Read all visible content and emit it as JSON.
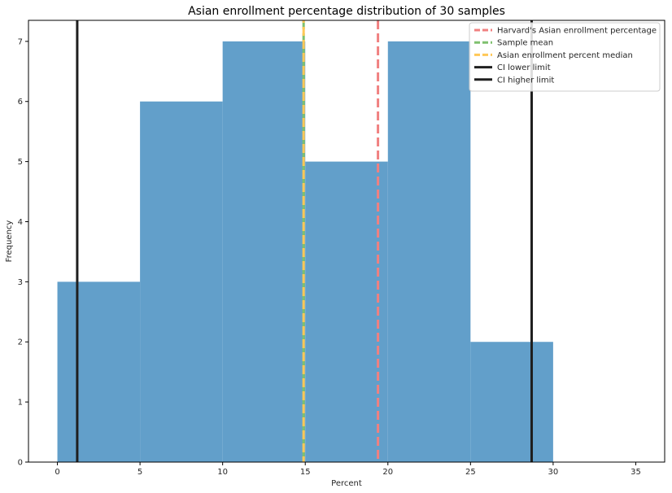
{
  "chart_data": {
    "type": "bar",
    "title": "Asian enrollment percentage distribution of 30 samples",
    "xlabel": "Percent",
    "ylabel": "Frequency",
    "xlim": [
      -1.75,
      36.75
    ],
    "ylim": [
      0,
      7.35
    ],
    "xticks": [
      0,
      5,
      10,
      15,
      20,
      25,
      30,
      35
    ],
    "yticks": [
      0,
      1,
      2,
      3,
      4,
      5,
      6,
      7
    ],
    "bin_edges": [
      0,
      5,
      10,
      15,
      20,
      25,
      30
    ],
    "values": [
      3,
      6,
      7,
      5,
      7,
      2
    ],
    "bar_color": "#629fca",
    "grid": false,
    "legend_position": "upper right",
    "reference_lines": [
      {
        "name": "Harvard's Asian enrollment percentage",
        "x": 19.4,
        "color": "#f08080",
        "style": "dashed"
      },
      {
        "name": "Sample mean",
        "x": 14.9,
        "color": "#7fc06f",
        "style": "dashed"
      },
      {
        "name": "Asian enrollment percent median",
        "x": 14.9,
        "color": "#ffc857",
        "style": "dashed"
      },
      {
        "name": "CI lower limit",
        "x": 1.2,
        "color": "#1f1f1f",
        "style": "solid"
      },
      {
        "name": "CI higher limit",
        "x": 28.7,
        "color": "#1f1f1f",
        "style": "solid"
      }
    ]
  }
}
